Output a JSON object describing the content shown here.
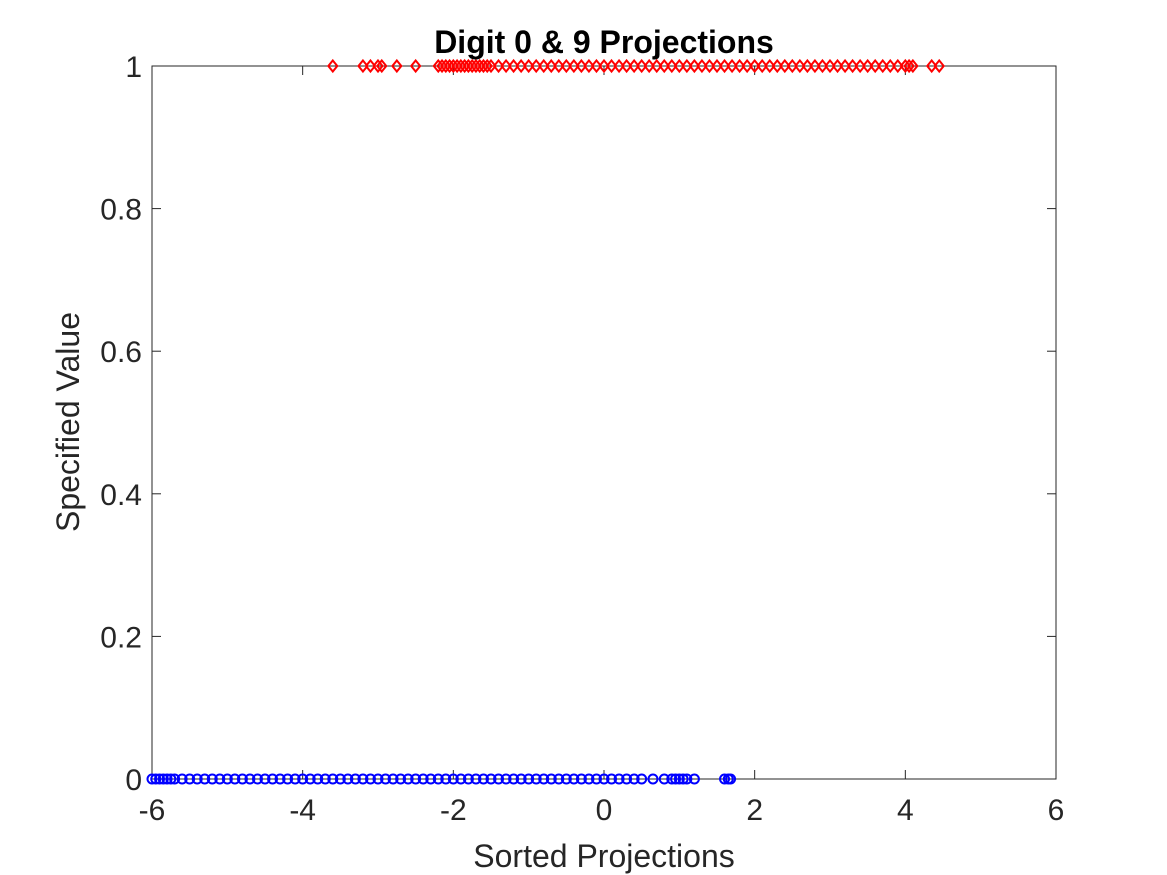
{
  "chart_data": {
    "type": "scatter",
    "title": "Digit 0 & 9 Projections",
    "xlabel": "Sorted Projections",
    "ylabel": "Specified Value",
    "xlim": [
      -6,
      6
    ],
    "ylim": [
      0,
      1
    ],
    "xticks": [
      "-6",
      "-4",
      "-2",
      "0",
      "2",
      "4",
      "6"
    ],
    "yticks": [
      "0",
      "0.2",
      "0.4",
      "0.6",
      "0.8",
      "1"
    ],
    "grid": false,
    "box": true,
    "series": [
      {
        "marker": "diamond",
        "color": "#ff0000",
        "y": 1,
        "x": [
          -3.6,
          -3.2,
          -3.1,
          -3.0,
          -2.95,
          -2.75,
          -2.5,
          -2.2,
          -2.15,
          -2.1,
          -2.05,
          -2.0,
          -1.95,
          -1.9,
          -1.85,
          -1.8,
          -1.75,
          -1.7,
          -1.65,
          -1.6,
          -1.55,
          -1.5,
          -1.4,
          -1.3,
          -1.2,
          -1.1,
          -1.0,
          -0.9,
          -0.8,
          -0.7,
          -0.6,
          -0.5,
          -0.4,
          -0.3,
          -0.2,
          -0.1,
          0.0,
          0.1,
          0.2,
          0.3,
          0.4,
          0.5,
          0.6,
          0.7,
          0.8,
          0.9,
          1.0,
          1.1,
          1.2,
          1.3,
          1.4,
          1.5,
          1.6,
          1.7,
          1.8,
          1.9,
          2.0,
          2.1,
          2.2,
          2.3,
          2.4,
          2.5,
          2.6,
          2.7,
          2.8,
          2.9,
          3.0,
          3.1,
          3.2,
          3.3,
          3.4,
          3.5,
          3.6,
          3.7,
          3.8,
          3.9,
          4.0,
          4.05,
          4.1,
          4.35,
          4.45
        ]
      },
      {
        "marker": "circle",
        "color": "#0000ff",
        "y": 0,
        "x": [
          -6.0,
          -5.95,
          -5.9,
          -5.85,
          -5.8,
          -5.75,
          -5.7,
          -5.6,
          -5.5,
          -5.4,
          -5.3,
          -5.2,
          -5.1,
          -5.0,
          -4.9,
          -4.8,
          -4.7,
          -4.6,
          -4.5,
          -4.4,
          -4.3,
          -4.2,
          -4.1,
          -4.0,
          -3.9,
          -3.8,
          -3.7,
          -3.6,
          -3.5,
          -3.4,
          -3.3,
          -3.2,
          -3.1,
          -3.0,
          -2.9,
          -2.8,
          -2.7,
          -2.6,
          -2.5,
          -2.4,
          -2.3,
          -2.2,
          -2.1,
          -2.0,
          -1.9,
          -1.8,
          -1.7,
          -1.6,
          -1.5,
          -1.4,
          -1.3,
          -1.2,
          -1.1,
          -1.0,
          -0.9,
          -0.8,
          -0.7,
          -0.6,
          -0.5,
          -0.4,
          -0.3,
          -0.2,
          -0.1,
          0.0,
          0.1,
          0.2,
          0.3,
          0.4,
          0.5,
          0.65,
          0.8,
          0.9,
          0.95,
          1.0,
          1.05,
          1.1,
          1.2,
          1.6,
          1.65,
          1.68
        ]
      }
    ]
  }
}
